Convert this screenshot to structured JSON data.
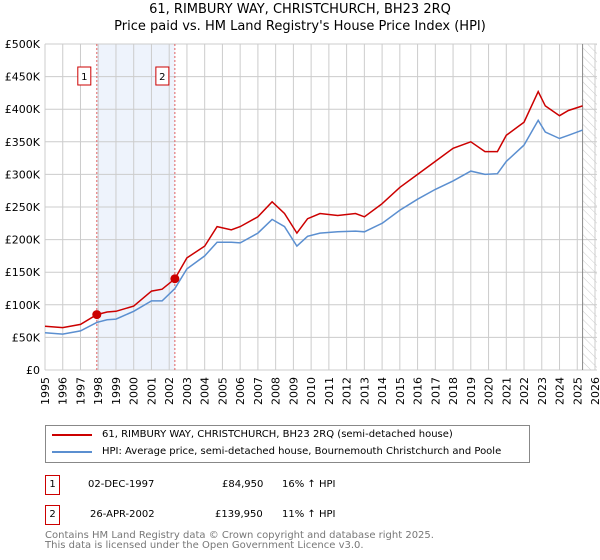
{
  "title": {
    "line1": "61, RIMBURY WAY, CHRISTCHURCH, BH23 2RQ",
    "line2": "Price paid vs. HM Land Registry's House Price Index (HPI)"
  },
  "chart_data": {
    "type": "line",
    "title": "61, RIMBURY WAY, CHRISTCHURCH, BH23 2RQ — Price paid vs. HM Land Registry's House Price Index (HPI)",
    "xlim": [
      1995,
      2026
    ],
    "ylim": [
      0,
      500000
    ],
    "x_ticks": [
      "1995",
      "1996",
      "1997",
      "1998",
      "1999",
      "2000",
      "2001",
      "2002",
      "2003",
      "2004",
      "2005",
      "2006",
      "2007",
      "2008",
      "2009",
      "2010",
      "2011",
      "2012",
      "2013",
      "2014",
      "2015",
      "2016",
      "2017",
      "2018",
      "2019",
      "2020",
      "2021",
      "2022",
      "2023",
      "2024",
      "2025",
      "2026"
    ],
    "y_ticks": [
      {
        "v": 0,
        "label": "£0"
      },
      {
        "v": 50000,
        "label": "£50K"
      },
      {
        "v": 100000,
        "label": "£100K"
      },
      {
        "v": 150000,
        "label": "£150K"
      },
      {
        "v": 200000,
        "label": "£200K"
      },
      {
        "v": 250000,
        "label": "£250K"
      },
      {
        "v": 300000,
        "label": "£300K"
      },
      {
        "v": 350000,
        "label": "£350K"
      },
      {
        "v": 400000,
        "label": "£400K"
      },
      {
        "v": 450000,
        "label": "£450K"
      },
      {
        "v": 500000,
        "label": "£500K"
      }
    ],
    "grid": true,
    "shaded_range": [
      1997.92,
      2002.32
    ],
    "future_hatch_from": 2025.3,
    "series": [
      {
        "name": "61, RIMBURY WAY, CHRISTCHURCH, BH23 2RQ (semi-detached house)",
        "color": "#cc0000",
        "x": [
          1995,
          1996,
          1997,
          1997.92,
          1998.5,
          1999,
          2000,
          2001,
          2001.6,
          2002.32,
          2003,
          2004,
          2004.7,
          2005.5,
          2006,
          2007,
          2007.8,
          2008.5,
          2009.2,
          2009.8,
          2010.5,
          2011.5,
          2012.5,
          2013,
          2014,
          2015,
          2016,
          2017,
          2018,
          2019,
          2019.8,
          2020.5,
          2021,
          2022,
          2022.8,
          2023.2,
          2024,
          2024.5,
          2025.3
        ],
        "y": [
          67000,
          65000,
          70000,
          84950,
          89000,
          90000,
          98000,
          121000,
          124000,
          139950,
          172000,
          190000,
          220000,
          215000,
          220000,
          235000,
          258000,
          240000,
          210000,
          232000,
          240000,
          237000,
          240000,
          235000,
          255000,
          280000,
          300000,
          320000,
          340000,
          350000,
          335000,
          335000,
          360000,
          380000,
          427000,
          405000,
          390000,
          398000,
          405000
        ]
      },
      {
        "name": "HPI: Average price, semi-detached house, Bournemouth Christchurch and Poole",
        "color": "#5b8fd0",
        "x": [
          1995,
          1996,
          1997,
          1997.92,
          1998.5,
          1999,
          2000,
          2001,
          2001.6,
          2002.32,
          2003,
          2004,
          2004.7,
          2005.5,
          2006,
          2007,
          2007.8,
          2008.5,
          2009.2,
          2009.8,
          2010.5,
          2011.5,
          2012.5,
          2013,
          2014,
          2015,
          2016,
          2017,
          2018,
          2019,
          2019.8,
          2020.5,
          2021,
          2022,
          2022.8,
          2023.2,
          2024,
          2024.5,
          2025.3
        ],
        "y": [
          57000,
          55000,
          60000,
          73000,
          77000,
          78000,
          90000,
          106000,
          106000,
          125000,
          155000,
          175000,
          196000,
          196000,
          195000,
          210000,
          231000,
          220000,
          190000,
          205000,
          210000,
          212000,
          213000,
          212000,
          225000,
          245000,
          262000,
          277000,
          290000,
          305000,
          300000,
          301000,
          320000,
          345000,
          383000,
          365000,
          355000,
          360000,
          368000
        ]
      }
    ],
    "markers": [
      {
        "label": "1",
        "x": 1997.92,
        "y": 84950
      },
      {
        "label": "2",
        "x": 2002.32,
        "y": 139950
      }
    ]
  },
  "legend": {
    "items": [
      {
        "label": "61, RIMBURY WAY, CHRISTCHURCH, BH23 2RQ (semi-detached house)",
        "color": "#cc0000"
      },
      {
        "label": "HPI: Average price, semi-detached house, Bournemouth Christchurch and Poole",
        "color": "#5b8fd0"
      }
    ]
  },
  "transactions": [
    {
      "num": "1",
      "date": "02-DEC-1997",
      "price": "£84,950",
      "hpi": "16% ↑ HPI"
    },
    {
      "num": "2",
      "date": "26-APR-2002",
      "price": "£139,950",
      "hpi": "11% ↑ HPI"
    }
  ],
  "footer": {
    "line1": "Contains HM Land Registry data © Crown copyright and database right 2025.",
    "line2": "This data is licensed under the Open Government Licence v3.0."
  }
}
